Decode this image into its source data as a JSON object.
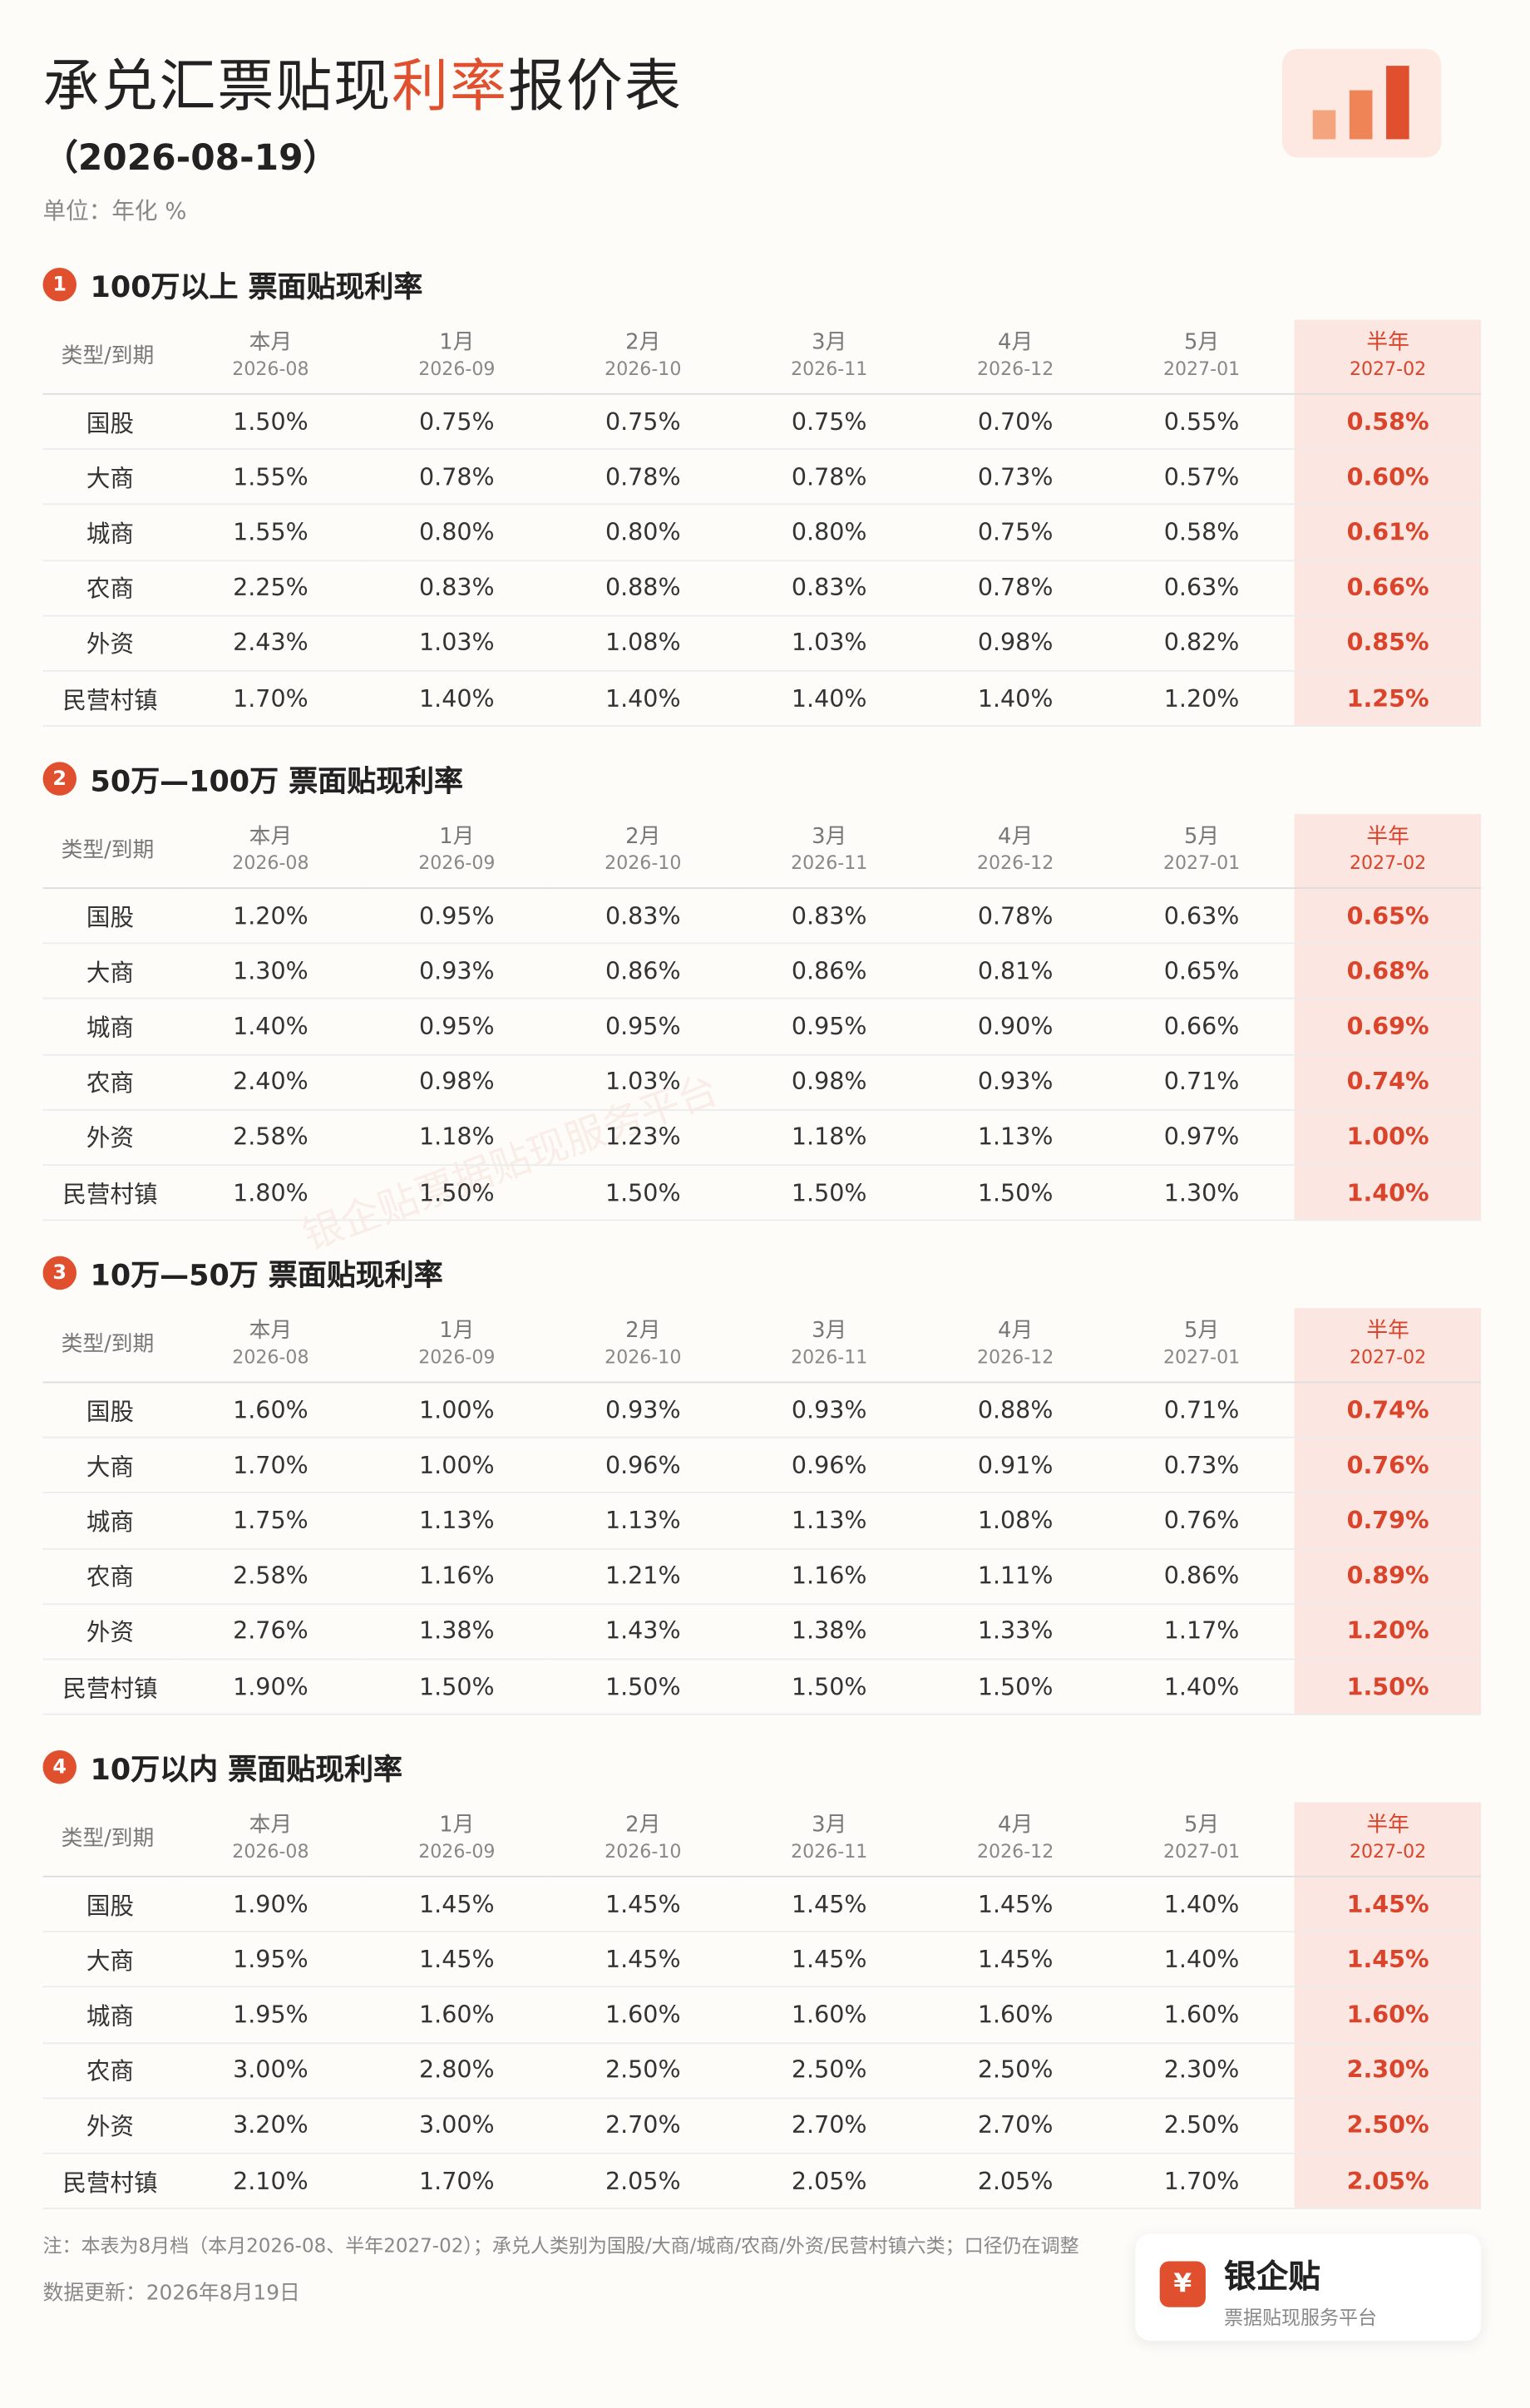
{
  "header": {
    "title": [
      "承兑汇票贴现",
      "利率",
      "报价表"
    ],
    "date": "（2026-08-19）",
    "unit": "单位：年化 %"
  },
  "table_header": {
    "first": "类型/到期",
    "columns": [
      [
        "本月",
        "2026-08"
      ],
      [
        "1月",
        "2026-09"
      ],
      [
        "2月",
        "2026-10"
      ],
      [
        "3月",
        "2026-11"
      ],
      [
        "4月",
        "2026-12"
      ],
      [
        "5月",
        "2027-01"
      ],
      [
        "半年",
        "2027-02"
      ]
    ]
  },
  "sections": [
    {
      "number": "1",
      "title": "100万以上 票面贴现利率",
      "rows": [
        [
          "国股",
          "1.50%",
          "0.75%",
          "0.75%",
          "0.75%",
          "0.70%",
          "0.55%",
          "0.58%"
        ],
        [
          "大商",
          "1.55%",
          "0.78%",
          "0.78%",
          "0.78%",
          "0.73%",
          "0.57%",
          "0.60%"
        ],
        [
          "城商",
          "1.55%",
          "0.80%",
          "0.80%",
          "0.80%",
          "0.75%",
          "0.58%",
          "0.61%"
        ],
        [
          "农商",
          "2.25%",
          "0.83%",
          "0.88%",
          "0.83%",
          "0.78%",
          "0.63%",
          "0.66%"
        ],
        [
          "外资",
          "2.43%",
          "1.03%",
          "1.08%",
          "1.03%",
          "0.98%",
          "0.82%",
          "0.85%"
        ],
        [
          "民营村镇",
          "1.70%",
          "1.40%",
          "1.40%",
          "1.40%",
          "1.40%",
          "1.20%",
          "1.25%"
        ]
      ]
    },
    {
      "number": "2",
      "title": "50万—100万 票面贴现利率",
      "rows": [
        [
          "国股",
          "1.20%",
          "0.95%",
          "0.83%",
          "0.83%",
          "0.78%",
          "0.63%",
          "0.65%"
        ],
        [
          "大商",
          "1.30%",
          "0.93%",
          "0.86%",
          "0.86%",
          "0.81%",
          "0.65%",
          "0.68%"
        ],
        [
          "城商",
          "1.40%",
          "0.95%",
          "0.95%",
          "0.95%",
          "0.90%",
          "0.66%",
          "0.69%"
        ],
        [
          "农商",
          "2.40%",
          "0.98%",
          "1.03%",
          "0.98%",
          "0.93%",
          "0.71%",
          "0.74%"
        ],
        [
          "外资",
          "2.58%",
          "1.18%",
          "1.23%",
          "1.18%",
          "1.13%",
          "0.97%",
          "1.00%"
        ],
        [
          "民营村镇",
          "1.80%",
          "1.50%",
          "1.50%",
          "1.50%",
          "1.50%",
          "1.30%",
          "1.40%"
        ]
      ]
    },
    {
      "number": "3",
      "title": "10万—50万 票面贴现利率",
      "rows": [
        [
          "国股",
          "1.60%",
          "1.00%",
          "0.93%",
          "0.93%",
          "0.88%",
          "0.71%",
          "0.74%"
        ],
        [
          "大商",
          "1.70%",
          "1.00%",
          "0.96%",
          "0.96%",
          "0.91%",
          "0.73%",
          "0.76%"
        ],
        [
          "城商",
          "1.75%",
          "1.13%",
          "1.13%",
          "1.13%",
          "1.08%",
          "0.76%",
          "0.79%"
        ],
        [
          "农商",
          "2.58%",
          "1.16%",
          "1.21%",
          "1.16%",
          "1.11%",
          "0.86%",
          "0.89%"
        ],
        [
          "外资",
          "2.76%",
          "1.38%",
          "1.43%",
          "1.38%",
          "1.33%",
          "1.17%",
          "1.20%"
        ],
        [
          "民营村镇",
          "1.90%",
          "1.50%",
          "1.50%",
          "1.50%",
          "1.50%",
          "1.40%",
          "1.50%"
        ]
      ]
    },
    {
      "number": "4",
      "title": "10万以内 票面贴现利率",
      "rows": [
        [
          "国股",
          "1.90%",
          "1.45%",
          "1.45%",
          "1.45%",
          "1.45%",
          "1.40%",
          "1.45%"
        ],
        [
          "大商",
          "1.95%",
          "1.45%",
          "1.45%",
          "1.45%",
          "1.45%",
          "1.40%",
          "1.45%"
        ],
        [
          "城商",
          "1.95%",
          "1.60%",
          "1.60%",
          "1.60%",
          "1.60%",
          "1.60%",
          "1.60%"
        ],
        [
          "农商",
          "3.00%",
          "2.80%",
          "2.50%",
          "2.50%",
          "2.50%",
          "2.30%",
          "2.30%"
        ],
        [
          "外资",
          "3.20%",
          "3.00%",
          "2.70%",
          "2.70%",
          "2.70%",
          "2.50%",
          "2.50%"
        ],
        [
          "民营村镇",
          "2.10%",
          "1.70%",
          "2.05%",
          "2.05%",
          "2.05%",
          "1.70%",
          "2.05%"
        ]
      ]
    }
  ],
  "watermark": "银企贴票据贴现服务平台",
  "footer": {
    "note": "注：本表为8月档（本月2026-08、半年2027-02）；承兑人类别为国股/大商/城商/农商/外资/民营村镇六类；口径仍在调整",
    "update": "数据更新：2026年8月19日"
  },
  "brand": {
    "icon": "¥",
    "name": "银企贴",
    "tagline": "票据贴现服务平台"
  }
}
